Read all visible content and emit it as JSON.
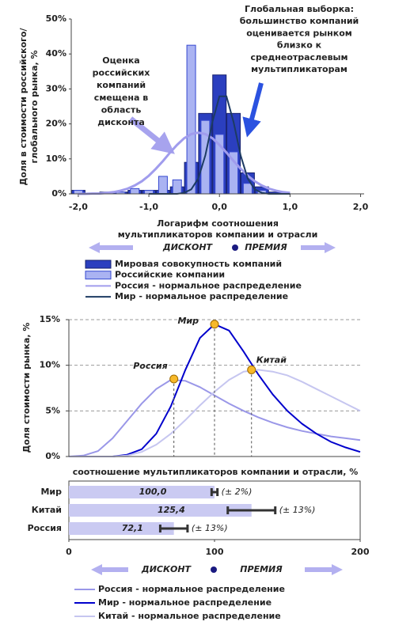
{
  "chart_data": [
    {
      "type": "bar",
      "ylabel": [
        "Доля в стоимости российского/",
        "глобального рынка, %"
      ],
      "xlabel": [
        "Логарифм соотношения",
        "мультипликаторов компании и отрасли"
      ],
      "xlim": [
        -2.1,
        2.05
      ],
      "ylim": [
        0,
        50
      ],
      "xticks": [
        {
          "value": -2,
          "label": "-2,0"
        },
        {
          "value": -1,
          "label": "-1,0"
        },
        {
          "value": 0,
          "label": "0,0"
        },
        {
          "value": 1,
          "label": "1,0"
        },
        {
          "value": 2,
          "label": "2,0"
        }
      ],
      "yticks": [
        {
          "value": 0,
          "label": "0%"
        },
        {
          "value": 10,
          "label": "10%"
        },
        {
          "value": 20,
          "label": "20%"
        },
        {
          "value": 30,
          "label": "30%"
        },
        {
          "value": 40,
          "label": "40%"
        },
        {
          "value": 50,
          "label": "50%"
        }
      ],
      "x": [
        -2.0,
        -1.8,
        -1.6,
        -1.4,
        -1.2,
        -1.0,
        -0.8,
        -0.6,
        -0.4,
        -0.2,
        0.0,
        0.2,
        0.4,
        0.6,
        0.8,
        1.0
      ],
      "series": [
        {
          "name": "Мировая совокупность компаний",
          "color": "#2b3fbf",
          "kind": "bar",
          "values": [
            1,
            0,
            0.5,
            0.5,
            1,
            1,
            1,
            2,
            9,
            23,
            34,
            23,
            6,
            2,
            0.5,
            0
          ]
        },
        {
          "name": "Российские компании",
          "color": "#aab3f2",
          "kind": "bar",
          "values": [
            1,
            0,
            0,
            0.5,
            1.5,
            1,
            5,
            4,
            42.5,
            21,
            17,
            12,
            3,
            1,
            0,
            0
          ]
        },
        {
          "name": "Россия - нормальное распределение",
          "color": "#a09ced",
          "kind": "line",
          "x": [
            -2.0,
            -1.9,
            -1.8,
            -1.7,
            -1.6,
            -1.5,
            -1.4,
            -1.3,
            -1.2,
            -1.1,
            -1.0,
            -0.9,
            -0.8,
            -0.7,
            -0.6,
            -0.5,
            -0.4,
            -0.3,
            -0.2,
            -0.1,
            0.0,
            0.1,
            0.2,
            0.3,
            0.4,
            0.5,
            0.6,
            0.7,
            0.8,
            0.9,
            1.0
          ],
          "values": [
            0,
            0,
            0.1,
            0.1,
            0.3,
            0.5,
            0.9,
            1.5,
            2.4,
            3.6,
            5.2,
            7.2,
            9.4,
            11.8,
            14.0,
            15.9,
            17.1,
            17.5,
            17.1,
            15.9,
            14.0,
            11.8,
            9.4,
            7.2,
            5.2,
            3.6,
            2.4,
            1.5,
            0.9,
            0.5,
            0.3
          ]
        },
        {
          "name": "Мир - нормальное распределение",
          "color": "#1d3b63",
          "kind": "line",
          "x": [
            -1.0,
            -0.9,
            -0.8,
            -0.7,
            -0.6,
            -0.5,
            -0.4,
            -0.3,
            -0.2,
            -0.1,
            0.0,
            0.1,
            0.2,
            0.3,
            0.4,
            0.5,
            0.6,
            0.7,
            0.8,
            0.9,
            1.0
          ],
          "values": [
            0,
            0,
            0,
            0,
            0,
            0.3,
            1.3,
            4.4,
            11.0,
            20.5,
            27.9,
            27.9,
            20.5,
            11.0,
            4.4,
            1.3,
            0.3,
            0,
            0,
            0,
            0
          ]
        }
      ],
      "annotations": [
        {
          "lines": [
            "Оценка",
            "российских",
            "компаний",
            "смещена в",
            "область",
            "дисконта"
          ]
        },
        {
          "lines": [
            "Глобальная выборка:",
            "большинство компаний",
            "оценивается рынком",
            "близко к",
            "среднеотраслевым",
            "мультипликаторам"
          ]
        }
      ],
      "arrow_labels": [
        "ДИСКОНТ",
        "ПРЕМИЯ"
      ]
    },
    {
      "type": "line",
      "ylabel": "Доля стоимости рынка, %",
      "xlabel": "соотношение мультипликаторов компании и отрасли, %",
      "xlim": [
        0,
        200
      ],
      "ylim": [
        0,
        15
      ],
      "yticks": [
        {
          "value": 0,
          "label": "0%"
        },
        {
          "value": 5,
          "label": "5%"
        },
        {
          "value": 10,
          "label": "10%"
        },
        {
          "value": 15,
          "label": "15%"
        }
      ],
      "grid": true,
      "x": [
        0,
        10,
        20,
        30,
        40,
        50,
        60,
        70,
        80,
        90,
        100,
        110,
        120,
        130,
        140,
        150,
        160,
        170,
        180,
        190,
        200
      ],
      "series": [
        {
          "name": "Россия - нормальное распределение",
          "color": "#9a97e8",
          "values": [
            0,
            0.1,
            0.6,
            2.0,
            3.9,
            5.8,
            7.4,
            8.4,
            8.3,
            7.6,
            6.7,
            5.8,
            5.0,
            4.3,
            3.7,
            3.2,
            2.8,
            2.5,
            2.2,
            2.0,
            1.8
          ]
        },
        {
          "name": "Мир - нормальное распределение",
          "color": "#0000cc",
          "values": [
            0,
            0,
            0,
            0,
            0.2,
            0.8,
            2.5,
            5.5,
            9.5,
            13,
            14.5,
            13.8,
            11.5,
            9,
            6.8,
            5,
            3.6,
            2.5,
            1.6,
            1.0,
            0.5
          ]
        },
        {
          "name": "Китай - нормальное распределение",
          "color": "#c6c6f0",
          "values": [
            0,
            0,
            0,
            0,
            0.1,
            0.5,
            1.3,
            2.5,
            4.0,
            5.6,
            7.1,
            8.4,
            9.3,
            9.5,
            9.3,
            8.9,
            8.2,
            7.4,
            6.6,
            5.8,
            5.0
          ]
        }
      ],
      "markers": [
        {
          "label": "Мир",
          "x": 100,
          "y": 14.5
        },
        {
          "label": "Китай",
          "x": 125.4,
          "y": 9.5
        },
        {
          "label": "Россия",
          "x": 72.1,
          "y": 8.5
        }
      ],
      "marker_color": "#f7b92a"
    },
    {
      "type": "hbar",
      "categories": [
        "Мир",
        "Китай",
        "Россия"
      ],
      "values": [
        100,
        125.4,
        72.1
      ],
      "value_labels": [
        "100,0",
        "125,4",
        "72,1"
      ],
      "errors_pct": [
        2,
        13,
        13
      ],
      "error_labels": [
        "(± 2%)",
        "(± 13%)",
        "(± 13%)"
      ],
      "color": "#cacaf2",
      "xlim": [
        0,
        200
      ],
      "xticks": [
        0,
        100,
        200
      ],
      "arrow_labels": [
        "ДИСКОНТ",
        "ПРЕМИЯ"
      ]
    }
  ]
}
